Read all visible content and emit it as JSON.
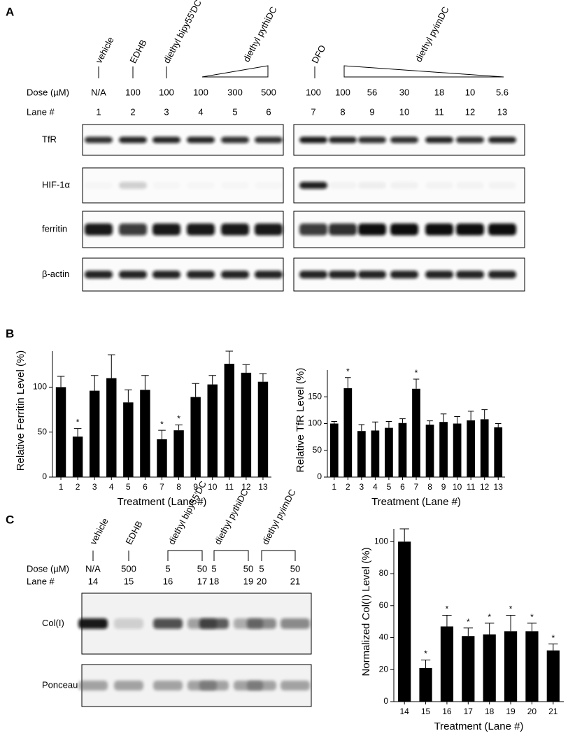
{
  "panel_labels": [
    "A",
    "B",
    "C"
  ],
  "panel_a": {
    "treatments": [
      "vehicle",
      "EDHB",
      "diethyl bipy55'DC",
      "diethyl pythiDC",
      "DFO",
      "diethyl pyimDC"
    ],
    "dose_label": "Dose (µM)",
    "doses": [
      "N/A",
      "100",
      "100",
      "100",
      "300",
      "500",
      "100",
      "100",
      "56",
      "30",
      "18",
      "10",
      "5.6"
    ],
    "lane_label": "Lane #",
    "lanes": [
      "1",
      "2",
      "3",
      "4",
      "5",
      "6",
      "7",
      "8",
      "9",
      "10",
      "11",
      "12",
      "13"
    ],
    "lane_colors": [
      "#000000",
      "#000000",
      "#000000",
      "#000000",
      "#000000",
      "#000000",
      "#e8120c",
      "#e8120c",
      "#e8120c",
      "#e8120c",
      "#e8120c",
      "#e8120c",
      "#e8120c"
    ],
    "blots": [
      "TfR",
      "HIF-1α",
      "ferritin",
      "β-actin"
    ]
  },
  "panel_c": {
    "treatments": [
      "vehicle",
      "EDHB",
      "diethyl bipy55'DC",
      "diethyl pythiDC",
      "diethyl pyimDC"
    ],
    "dose_label": "Dose (µM)",
    "doses": [
      "N/A",
      "500",
      "5",
      "50",
      "5",
      "50",
      "5",
      "50"
    ],
    "lane_label": "Lane #",
    "lanes": [
      "14",
      "15",
      "16",
      "17",
      "18",
      "19",
      "20",
      "21"
    ],
    "blots": [
      "Col(I)",
      "Ponceau"
    ]
  },
  "chart_data": [
    {
      "type": "bar",
      "y_label": "Relative Ferritin Level (%)",
      "x_label": "Treatment (Lane #)",
      "categories": [
        "1",
        "2",
        "3",
        "4",
        "5",
        "6",
        "7",
        "8",
        "9",
        "10",
        "11",
        "12",
        "13"
      ],
      "category_colors": [
        "#000000",
        "#000000",
        "#000000",
        "#000000",
        "#000000",
        "#000000",
        "#e8120c",
        "#e8120c",
        "#e8120c",
        "#e8120c",
        "#e8120c",
        "#e8120c",
        "#e8120c"
      ],
      "values": [
        100,
        45,
        96,
        110,
        83,
        97,
        42,
        52,
        89,
        103,
        126,
        116,
        106
      ],
      "errors": [
        12,
        9,
        17,
        26,
        14,
        16,
        10,
        6,
        15,
        10,
        14,
        9,
        9
      ],
      "annotation": "*",
      "significant": [
        false,
        true,
        false,
        false,
        false,
        false,
        true,
        true,
        false,
        false,
        false,
        false,
        false
      ],
      "color": "#000000",
      "ylim": [
        0,
        140
      ],
      "yticks": [
        0,
        50,
        100
      ]
    },
    {
      "type": "bar",
      "y_label": "Relative TfR Level (%)",
      "x_label": "Treatment (Lane #)",
      "categories": [
        "1",
        "2",
        "3",
        "4",
        "5",
        "6",
        "7",
        "8",
        "9",
        "10",
        "11",
        "12",
        "13"
      ],
      "category_colors": [
        "#000000",
        "#000000",
        "#000000",
        "#000000",
        "#000000",
        "#000000",
        "#e8120c",
        "#e8120c",
        "#e8120c",
        "#e8120c",
        "#e8120c",
        "#e8120c",
        "#e8120c"
      ],
      "values": [
        100,
        166,
        86,
        87,
        92,
        101,
        165,
        98,
        103,
        100,
        106,
        108,
        93
      ],
      "errors": [
        4,
        20,
        12,
        16,
        12,
        8,
        18,
        7,
        15,
        13,
        17,
        18,
        7
      ],
      "annotation": "*",
      "significant": [
        false,
        true,
        false,
        false,
        false,
        false,
        true,
        false,
        false,
        false,
        false,
        false,
        false
      ],
      "color": "#000000",
      "ylim": [
        0,
        200
      ],
      "yticks": [
        0,
        50,
        100,
        150
      ]
    },
    {
      "type": "bar",
      "y_label": "Normalized Col(I) Level (%)",
      "x_label": "Treatment (Lane #)",
      "categories": [
        "14",
        "15",
        "16",
        "17",
        "18",
        "19",
        "20",
        "21"
      ],
      "values": [
        100,
        21,
        47,
        41,
        42,
        44,
        44,
        32
      ],
      "errors": [
        8,
        5,
        7,
        5,
        7,
        10,
        5,
        4
      ],
      "annotation": "*",
      "significant": [
        false,
        true,
        true,
        true,
        true,
        true,
        true,
        true
      ],
      "color": "#000000",
      "ylim": [
        0,
        108
      ],
      "yticks": [
        0,
        20,
        40,
        60,
        80,
        100
      ]
    }
  ]
}
